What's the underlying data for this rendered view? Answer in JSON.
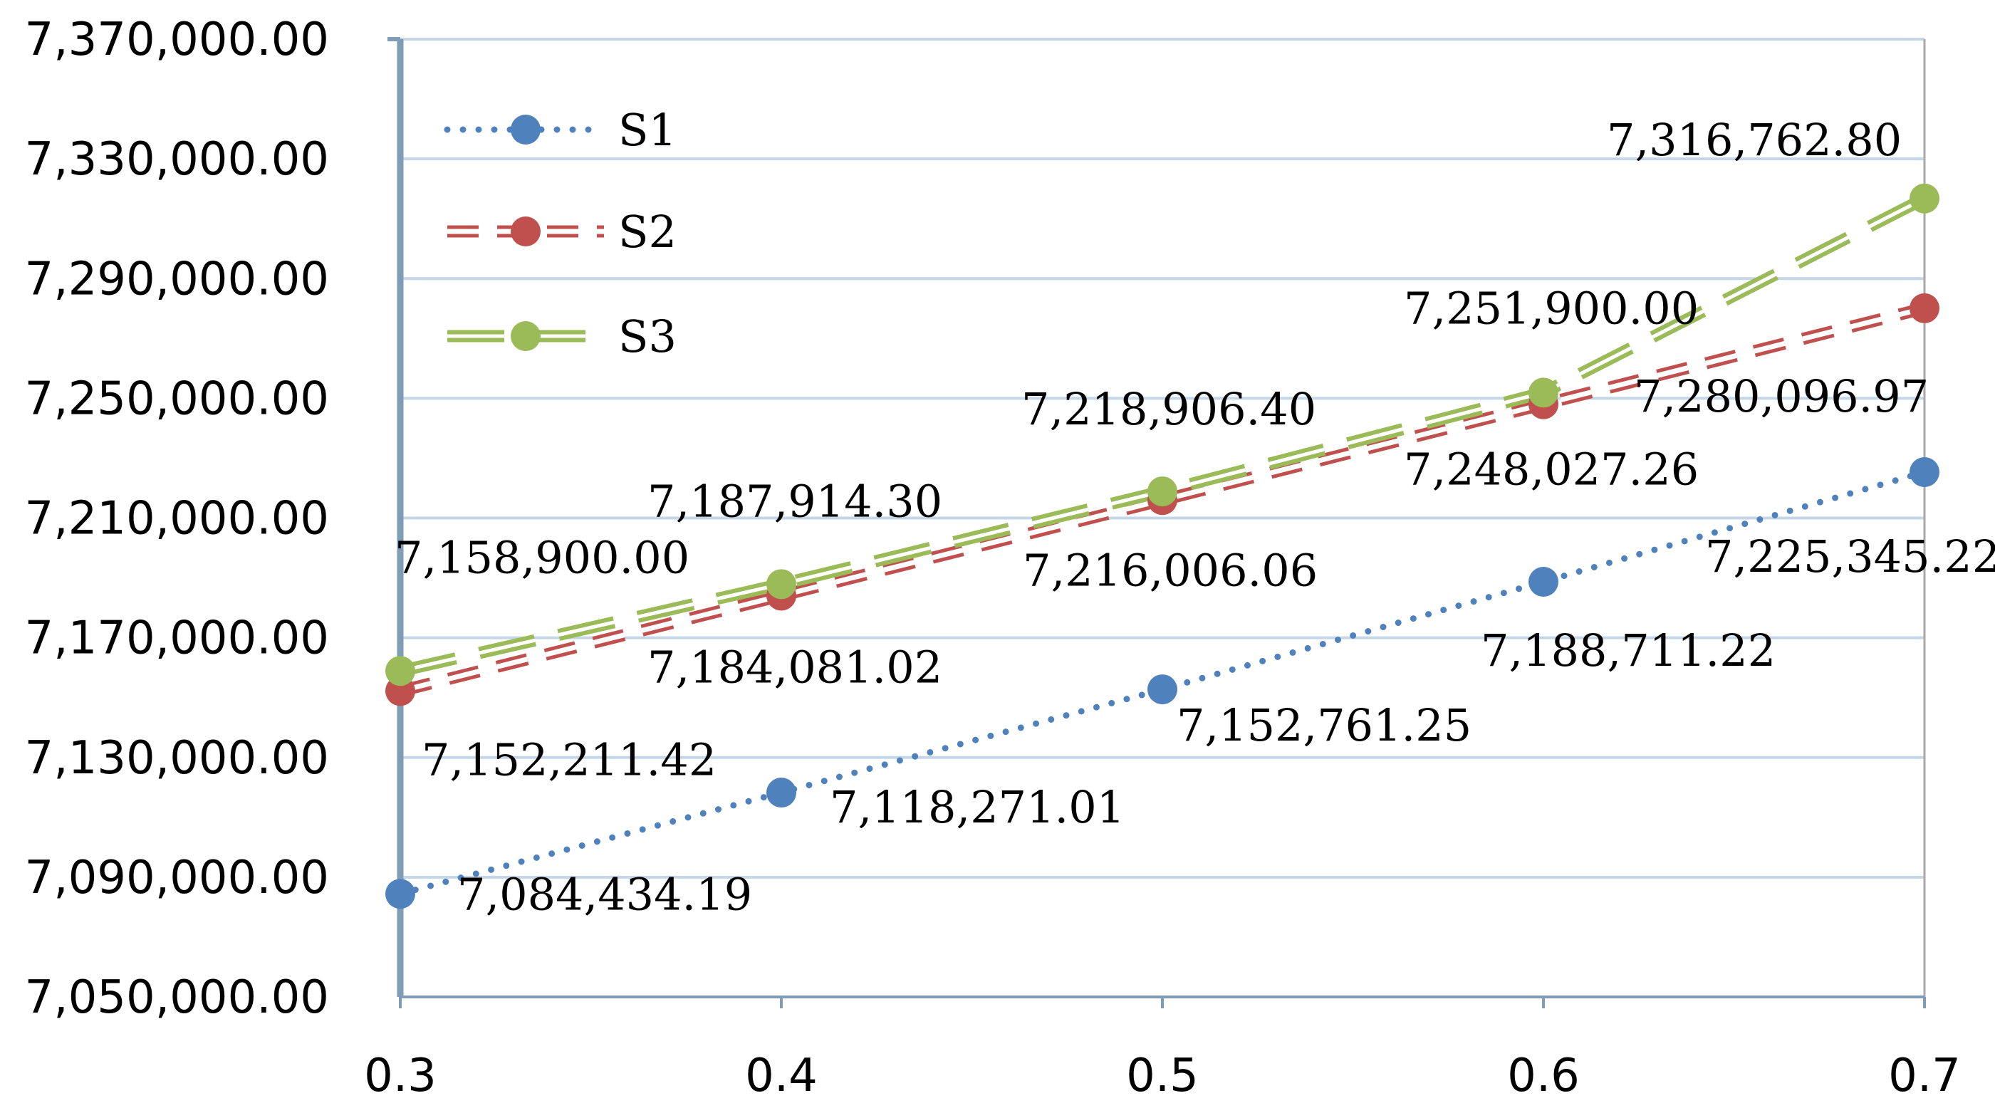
{
  "chart_data": {
    "type": "line",
    "title": "",
    "xlabel": "",
    "ylabel": "",
    "x": [
      0.3,
      0.4,
      0.5,
      0.6,
      0.7
    ],
    "x_tick_labels": [
      "0.3",
      "0.4",
      "0.5",
      "0.6",
      "0.7"
    ],
    "ylim": [
      7050000,
      7370000
    ],
    "y_ticks": [
      7050000,
      7090000,
      7130000,
      7170000,
      7210000,
      7250000,
      7290000,
      7330000,
      7370000
    ],
    "y_tick_labels": [
      "7,050,000.00",
      "7,090,000.00",
      "7,130,000.00",
      "7,170,000.00",
      "7,210,000.00",
      "7,250,000.00",
      "7,290,000.00",
      "7,330,000.00",
      "7,370,000.00"
    ],
    "grid": "horizontal",
    "legend_position": "top-left",
    "series": [
      {
        "name": "S1",
        "color": "#4F81BD",
        "line_style": "dotted",
        "values": [
          7084434.19,
          7118271.01,
          7152761.25,
          7188711.22,
          7225345.22
        ],
        "labels": [
          "7,084,434.19",
          "7,118,271.01",
          "7,152,761.25",
          "7,188,711.22",
          "7,225,345.22"
        ]
      },
      {
        "name": "S2",
        "color": "#C0504D",
        "line_style": "dashed",
        "values": [
          7152211.42,
          7184081.02,
          7216006.06,
          7248027.26,
          7280096.97
        ],
        "labels": [
          "7,152,211.42",
          "7,184,081.02",
          "7,216,006.06",
          "7,248,027.26",
          "7,280,096.97"
        ]
      },
      {
        "name": "S3",
        "color": "#9BBB59",
        "line_style": "long-dash",
        "values": [
          7158900.0,
          7187914.3,
          7218906.4,
          7251900.0,
          7316762.8
        ],
        "labels": [
          "7,158,900.00",
          "7,187,914.30",
          "7,218,906.40",
          "7,251,900.00",
          "7,316,762.80"
        ]
      }
    ]
  }
}
